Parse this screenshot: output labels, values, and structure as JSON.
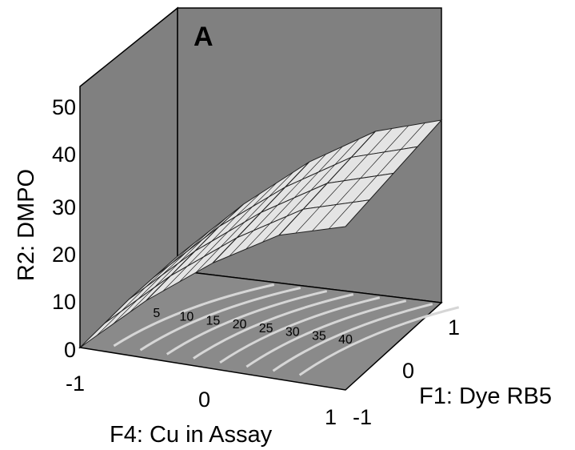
{
  "chart_data": {
    "type": "surface3d",
    "panel_label": "A",
    "xlabel": "F4: Cu in Assay",
    "ylabel": "F1: Dye RB5",
    "zlabel": "R2: DMPO",
    "x_ticks": [
      "-1",
      "0",
      "1"
    ],
    "y_ticks": [
      "-1",
      "0",
      "1"
    ],
    "z_ticks": [
      "0",
      "10",
      "20",
      "30",
      "40",
      "50"
    ],
    "xlim": [
      -1,
      1
    ],
    "ylim": [
      -1,
      1
    ],
    "zlim": [
      0,
      50
    ],
    "grid": false,
    "surface": {
      "x": [
        -1,
        -0.5,
        0,
        0.5,
        1
      ],
      "y": [
        -1,
        -0.5,
        0,
        0.5,
        1
      ],
      "z": [
        [
          0,
          1,
          2,
          2.5,
          3
        ],
        [
          12,
          13,
          14,
          15,
          15.5
        ],
        [
          22,
          23,
          24,
          25,
          26
        ],
        [
          30,
          31,
          32,
          33,
          34
        ],
        [
          34,
          35,
          36,
          37,
          38
        ]
      ]
    },
    "contour_levels": [
      "5",
      "10",
      "15",
      "20",
      "25",
      "30",
      "35",
      "40"
    ],
    "colors": {
      "back_walls": "#808080",
      "floor": "#8a8a8a",
      "surface_fill": "#e4e4e4",
      "surface_mesh": "#222222",
      "contour_line": "#d6d6d6"
    }
  }
}
